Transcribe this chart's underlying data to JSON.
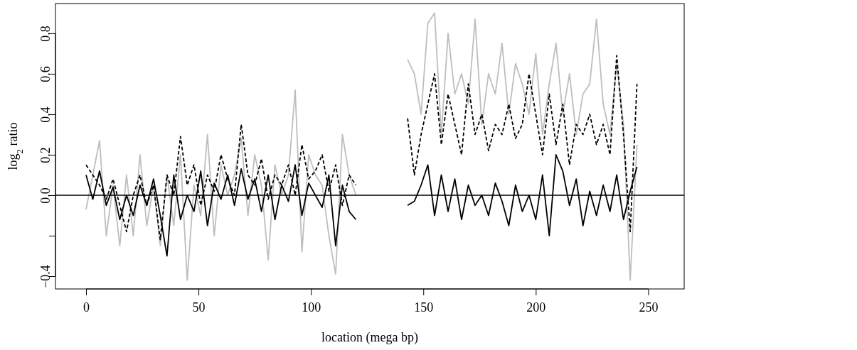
{
  "chart_data": {
    "type": "line",
    "xlabel": "location (mega bp)",
    "ylabel": "log$_{2}$ ratio",
    "x": [
      0,
      3,
      6,
      9,
      12,
      15,
      18,
      21,
      24,
      27,
      30,
      33,
      36,
      39,
      42,
      45,
      48,
      51,
      54,
      57,
      60,
      63,
      66,
      69,
      72,
      75,
      78,
      81,
      84,
      87,
      90,
      93,
      96,
      99,
      102,
      105,
      108,
      111,
      114,
      117,
      120,
      131,
      143,
      146,
      149,
      152,
      155,
      158,
      161,
      164,
      167,
      170,
      173,
      176,
      179,
      182,
      185,
      188,
      191,
      194,
      197,
      200,
      203,
      206,
      209,
      212,
      215,
      218,
      221,
      224,
      227,
      230,
      233,
      236,
      239,
      242,
      245
    ],
    "series": [
      {
        "color": "#bebebe",
        "line_style": "solid",
        "values": [
          -0.07,
          0.1,
          0.27,
          -0.2,
          0.05,
          -0.25,
          0.1,
          -0.2,
          0.2,
          -0.15,
          0.05,
          -0.25,
          0.1,
          -0.15,
          0.2,
          -0.42,
          0.05,
          -0.1,
          0.3,
          -0.2,
          0.15,
          0.0,
          0.1,
          0.28,
          -0.1,
          0.2,
          0.05,
          -0.32,
          0.15,
          0.0,
          0.1,
          0.52,
          -0.28,
          0.2,
          0.1,
          0.05,
          -0.2,
          -0.39,
          0.3,
          0.1,
          0.0,
          null,
          0.67,
          0.6,
          0.4,
          0.85,
          0.9,
          0.3,
          0.8,
          0.5,
          0.6,
          0.45,
          0.87,
          0.35,
          0.6,
          0.5,
          0.75,
          0.4,
          0.65,
          0.55,
          0.4,
          0.7,
          0.3,
          0.55,
          0.75,
          0.4,
          0.6,
          0.3,
          0.5,
          0.55,
          0.87,
          0.45,
          0.3,
          0.65,
          0.35,
          -0.42,
          0.25
        ]
      },
      {
        "color": "#000000",
        "line_style": "dashed",
        "values": [
          0.15,
          0.1,
          0.05,
          -0.02,
          0.08,
          -0.05,
          -0.18,
          0.0,
          0.1,
          -0.05,
          0.05,
          -0.22,
          0.1,
          0.0,
          0.29,
          0.05,
          0.15,
          -0.05,
          0.1,
          0.02,
          0.2,
          0.08,
          0.0,
          0.35,
          0.1,
          0.05,
          0.18,
          -0.02,
          0.1,
          0.05,
          0.15,
          0.0,
          0.25,
          0.08,
          0.12,
          0.2,
          0.02,
          0.15,
          -0.05,
          0.1,
          0.05,
          null,
          0.38,
          0.1,
          0.3,
          0.45,
          0.6,
          0.25,
          0.5,
          0.35,
          0.2,
          0.55,
          0.3,
          0.4,
          0.22,
          0.35,
          0.3,
          0.45,
          0.28,
          0.35,
          0.6,
          0.4,
          0.2,
          0.5,
          0.25,
          0.45,
          0.15,
          0.35,
          0.3,
          0.4,
          0.25,
          0.35,
          0.2,
          0.69,
          0.3,
          -0.18,
          0.55
        ]
      },
      {
        "color": "#000000",
        "line_style": "solid",
        "values": [
          0.1,
          -0.02,
          0.12,
          -0.05,
          0.04,
          -0.12,
          0.0,
          -0.1,
          0.05,
          -0.05,
          0.08,
          -0.1,
          -0.3,
          0.1,
          -0.12,
          0.0,
          -0.08,
          0.12,
          -0.15,
          0.06,
          -0.02,
          0.1,
          -0.05,
          0.13,
          -0.02,
          0.08,
          -0.08,
          0.1,
          -0.12,
          0.05,
          -0.03,
          0.15,
          -0.1,
          0.06,
          0.0,
          -0.06,
          0.1,
          -0.25,
          0.05,
          -0.08,
          -0.12,
          null,
          -0.05,
          -0.03,
          0.05,
          0.15,
          -0.1,
          0.1,
          -0.08,
          0.08,
          -0.12,
          0.05,
          -0.05,
          0.0,
          -0.1,
          0.06,
          -0.03,
          -0.15,
          0.05,
          -0.08,
          0.0,
          -0.12,
          0.1,
          -0.2,
          0.2,
          0.12,
          -0.05,
          0.08,
          -0.15,
          0.02,
          -0.1,
          0.05,
          -0.08,
          0.1,
          -0.12,
          0.02,
          0.14
        ]
      }
    ],
    "xlim": [
      -13.6,
      266
    ],
    "xticks": [
      0,
      50,
      100,
      150,
      200,
      250
    ],
    "ylim": [
      -0.463,
      0.947
    ],
    "yticks": [
      {
        "value": -0.4,
        "label": "−0.4"
      },
      {
        "value": -0.2,
        "label": null
      },
      {
        "value": 0,
        "label": "0.0"
      },
      {
        "value": 0.2,
        "label": "0.2"
      },
      {
        "value": 0.4,
        "label": "0.4"
      },
      {
        "value": 0.6,
        "label": "0.6"
      },
      {
        "value": 0.8,
        "label": "0.8"
      }
    ],
    "ref_lines": [
      {
        "axis": "y",
        "value": 0,
        "color": "#000000",
        "line_style": "solid"
      }
    ],
    "grid": false
  }
}
